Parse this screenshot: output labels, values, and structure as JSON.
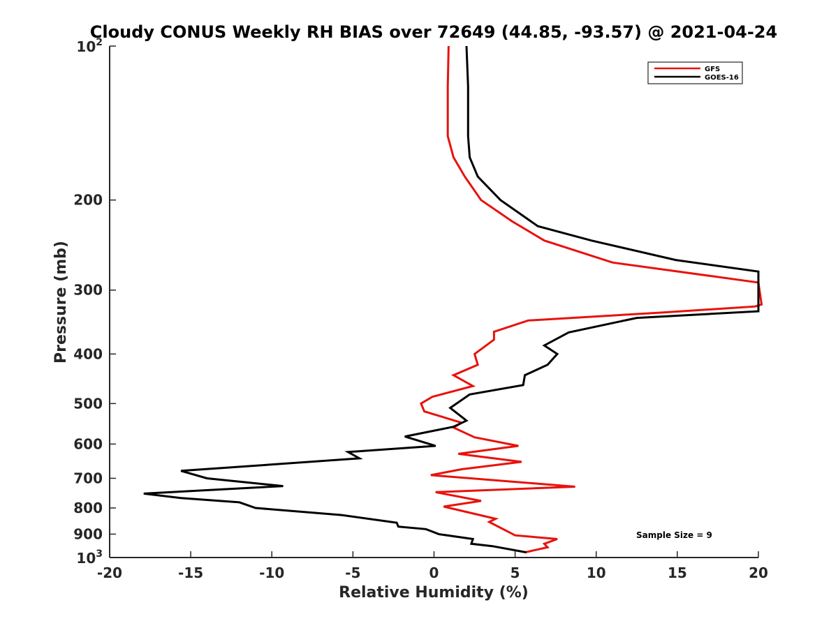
{
  "chart_data": {
    "type": "line",
    "title": "Cloudy CONUS Weekly RH BIAS over 72649 (44.85, -93.57) @ 2021-04-24",
    "xlabel": "Relative Humidity (%)",
    "ylabel": "Pressure (mb)",
    "xlim": [
      -20,
      20
    ],
    "ylim": [
      100,
      1000
    ],
    "y_scale": "log",
    "y_reversed": true,
    "grid": false,
    "legend_position": "top-right",
    "x_ticks": [
      -20,
      -15,
      -10,
      -5,
      0,
      5,
      10,
      15,
      20
    ],
    "y_ticks": [
      {
        "value": 100,
        "base": "10",
        "exp": "2"
      },
      {
        "value": 200,
        "label": "200"
      },
      {
        "value": 300,
        "label": "300"
      },
      {
        "value": 400,
        "label": "400"
      },
      {
        "value": 500,
        "label": "500"
      },
      {
        "value": 600,
        "label": "600"
      },
      {
        "value": 700,
        "label": "700"
      },
      {
        "value": 800,
        "label": "800"
      },
      {
        "value": 900,
        "label": "900"
      },
      {
        "value": 1000,
        "base": "10",
        "exp": "3"
      }
    ],
    "annotation": "Sample Size = 9",
    "series": [
      {
        "name": "GFS",
        "color": "#e8120c",
        "points": [
          [
            0.9,
            100
          ],
          [
            0.85,
            120
          ],
          [
            0.85,
            150
          ],
          [
            1.2,
            165
          ],
          [
            1.9,
            180
          ],
          [
            2.9,
            200
          ],
          [
            4.8,
            220
          ],
          [
            6.8,
            240
          ],
          [
            11,
            265
          ],
          [
            20,
            290
          ],
          [
            20.2,
            320
          ],
          [
            19.8,
            323
          ],
          [
            14,
            332
          ],
          [
            5.8,
            344
          ],
          [
            3.7,
            362
          ],
          [
            3.7,
            375
          ],
          [
            2.5,
            400
          ],
          [
            2.7,
            420
          ],
          [
            1.2,
            440
          ],
          [
            2.4,
            462
          ],
          [
            -0.1,
            485
          ],
          [
            -0.8,
            500
          ],
          [
            -0.6,
            518
          ],
          [
            1.7,
            545
          ],
          [
            1.2,
            557
          ],
          [
            2.5,
            582
          ],
          [
            5.2,
            605
          ],
          [
            1.5,
            627
          ],
          [
            5.4,
            650
          ],
          [
            1.7,
            672
          ],
          [
            -0.2,
            690
          ],
          [
            8.7,
            727
          ],
          [
            0.1,
            745
          ],
          [
            2.9,
            775
          ],
          [
            0.6,
            795
          ],
          [
            3.8,
            840
          ],
          [
            3.4,
            852
          ],
          [
            5,
            905
          ],
          [
            7.6,
            920
          ],
          [
            6.8,
            940
          ],
          [
            7,
            955
          ],
          [
            5.6,
            977
          ]
        ]
      },
      {
        "name": "GOES-16",
        "color": "#000000",
        "points": [
          [
            2,
            100
          ],
          [
            2.1,
            120
          ],
          [
            2.1,
            150
          ],
          [
            2.2,
            165
          ],
          [
            2.7,
            180
          ],
          [
            4.1,
            200
          ],
          [
            6.4,
            225
          ],
          [
            9.7,
            240
          ],
          [
            14.9,
            262
          ],
          [
            20,
            276
          ],
          [
            20,
            330
          ],
          [
            12.5,
            340
          ],
          [
            8.3,
            363
          ],
          [
            6.8,
            385
          ],
          [
            7.6,
            400
          ],
          [
            7,
            420
          ],
          [
            5.6,
            440
          ],
          [
            5.5,
            460
          ],
          [
            2.2,
            480
          ],
          [
            1,
            510
          ],
          [
            2,
            540
          ],
          [
            1.2,
            555
          ],
          [
            -1.8,
            580
          ],
          [
            0.1,
            605
          ],
          [
            -5.3,
            622
          ],
          [
            -4.6,
            640
          ],
          [
            -15.6,
            677
          ],
          [
            -14,
            700
          ],
          [
            -9.3,
            725
          ],
          [
            -17.9,
            750
          ],
          [
            -15.6,
            765
          ],
          [
            -12,
            780
          ],
          [
            -11,
            800
          ],
          [
            -5.7,
            826
          ],
          [
            -2.3,
            855
          ],
          [
            -2.2,
            870
          ],
          [
            -0.5,
            880
          ],
          [
            0.3,
            900
          ],
          [
            2.4,
            920
          ],
          [
            2.3,
            940
          ],
          [
            3.6,
            950
          ],
          [
            5.7,
            977
          ]
        ]
      }
    ]
  }
}
